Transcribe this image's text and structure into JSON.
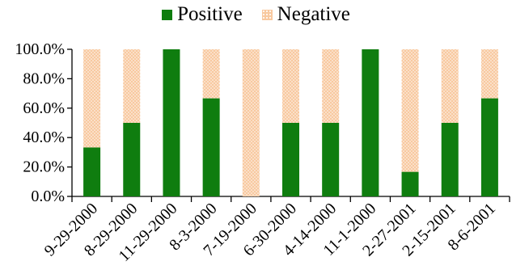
{
  "chart_data": {
    "type": "bar",
    "stacked": true,
    "categories": [
      "9-29-2000",
      "8-29-2000",
      "11-29-2000",
      "8-3-2000",
      "7-19-2000",
      "6-30-2000",
      "4-14-2000",
      "11-1-2000",
      "2-27-2001",
      "2-15-2001",
      "8-6-2001"
    ],
    "series": [
      {
        "name": "Positive",
        "color": "#0f7d0f",
        "values": [
          33.3,
          50,
          100,
          66.7,
          0,
          50,
          50,
          100,
          16.7,
          50,
          66.7
        ]
      },
      {
        "name": "Negative",
        "color": "#f8c9a0",
        "values": [
          66.7,
          50,
          0,
          33.3,
          100,
          50,
          50,
          0,
          83.3,
          50,
          33.3
        ]
      }
    ],
    "yticks": [
      "0.0%",
      "20.0%",
      "40.0%",
      "60.0%",
      "80.0%",
      "100.0%"
    ],
    "ylim": [
      0,
      100
    ],
    "legend_position": "top-center",
    "grid": false
  }
}
